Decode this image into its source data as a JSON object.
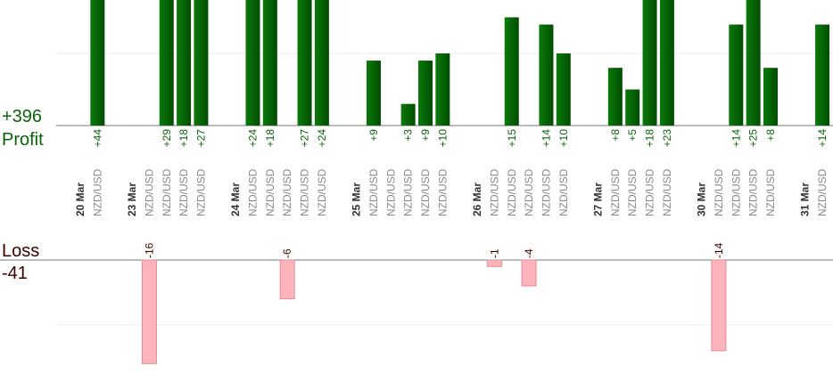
{
  "chart_data": {
    "type": "bar",
    "dates": [
      "20 Mar",
      null,
      null,
      "23 Mar",
      null,
      null,
      null,
      null,
      null,
      "24 Mar",
      null,
      null,
      null,
      null,
      null,
      null,
      "25 Mar",
      null,
      null,
      null,
      null,
      null,
      null,
      "26 Mar",
      null,
      null,
      null,
      null,
      null,
      null,
      "27 Mar",
      null,
      null,
      null,
      null,
      null,
      "30 Mar",
      null,
      null,
      null,
      null,
      null,
      "31 Mar",
      null
    ],
    "categories": [
      null,
      "NZD/USD",
      null,
      null,
      "NZD/USD",
      "NZD/USD",
      "NZD/USD",
      "NZD/USD",
      null,
      null,
      "NZD/USD",
      "NZD/USD",
      "NZD/USD",
      "NZD/USD",
      "NZD/USD",
      null,
      null,
      "NZD/USD",
      "NZD/USD",
      "NZD/USD",
      "NZD/USD",
      "NZD/USD",
      null,
      null,
      "NZD/USD",
      "NZD/USD",
      "NZD/USD",
      "NZD/USD",
      "NZD/USD",
      null,
      null,
      "NZD/USD",
      "NZD/USD",
      "NZD/USD",
      "NZD/USD",
      null,
      null,
      "NZD/USD",
      "NZD/USD",
      "NZD/USD",
      "NZD/USD",
      null,
      null,
      "NZD/USD"
    ],
    "series": [
      {
        "name": "Profit",
        "color": "#0a640a",
        "total": {
          "value": 396,
          "label": "+396"
        },
        "values": [
          null,
          44,
          null,
          null,
          null,
          29,
          18,
          27,
          null,
          null,
          24,
          18,
          null,
          27,
          24,
          null,
          null,
          9,
          null,
          3,
          9,
          10,
          null,
          null,
          null,
          15,
          null,
          14,
          10,
          null,
          null,
          8,
          5,
          18,
          23,
          null,
          null,
          null,
          14,
          25,
          8,
          null,
          null,
          14
        ],
        "value_labels": [
          null,
          "+44",
          null,
          null,
          null,
          "+29",
          "+18",
          "+27",
          null,
          null,
          "+24",
          "+18",
          null,
          "+27",
          "+24",
          null,
          null,
          "+9",
          null,
          "+3",
          "+9",
          "+10",
          null,
          null,
          null,
          "+15",
          null,
          "+14",
          "+10",
          null,
          null,
          "+8",
          "+5",
          "+18",
          "+23",
          null,
          null,
          null,
          "+14",
          "+25",
          "+8",
          null,
          null,
          "+14"
        ]
      },
      {
        "name": "Loss",
        "color": "#ffb3bb",
        "axis": "y2",
        "total": -41,
        "values": [
          null,
          null,
          null,
          null,
          -16,
          null,
          null,
          null,
          null,
          null,
          null,
          null,
          -6,
          null,
          null,
          null,
          null,
          null,
          null,
          null,
          null,
          null,
          null,
          null,
          -1,
          null,
          -4,
          null,
          null,
          null,
          null,
          null,
          null,
          null,
          null,
          null,
          null,
          -14,
          null,
          null,
          null,
          null,
          null,
          null
        ]
      }
    ],
    "ylim": [
      0,
      17.4
    ],
    "yticks": [
      10
    ],
    "y2lim": [
      -17.6,
      0
    ],
    "y2ticks": [
      -10
    ],
    "grid": true
  }
}
